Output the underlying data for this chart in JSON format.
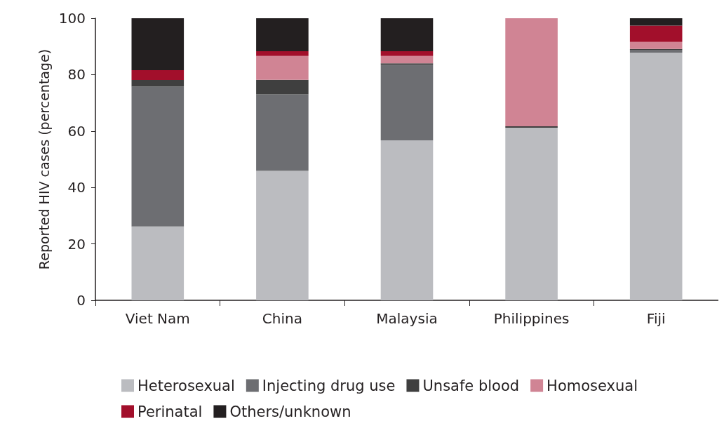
{
  "chart_data": {
    "type": "bar",
    "stacked": true,
    "ylabel": "Reported HIV cases (percentage)",
    "categories": [
      "Viet Nam",
      "China",
      "Malaysia",
      "Philippines",
      "Fiji"
    ],
    "series": [
      {
        "name": "Heterosexual",
        "color": "#bbbcc0",
        "values": [
          26.2,
          45.9,
          56.7,
          61.2,
          87.8
        ]
      },
      {
        "name": "Injecting drug use",
        "color": "#6d6e72",
        "values": [
          49.6,
          27.1,
          26.8,
          0,
          1.0
        ]
      },
      {
        "name": "Unsafe blood",
        "color": "#3f3f3f",
        "values": [
          2.3,
          5.2,
          0.5,
          0.5,
          0.3
        ]
      },
      {
        "name": "Homosexual",
        "color": "#d08494",
        "values": [
          0,
          8.4,
          2.6,
          38.3,
          2.5
        ]
      },
      {
        "name": "Perinatal",
        "color": "#a20f2b",
        "values": [
          3.5,
          1.7,
          1.7,
          0,
          5.8
        ]
      },
      {
        "name": "Others/unknown",
        "color": "#231f20",
        "values": [
          18.4,
          11.7,
          11.7,
          0,
          2.6
        ]
      }
    ],
    "ylim": [
      0,
      100
    ],
    "yticks": [
      0,
      20,
      40,
      60,
      80,
      100
    ],
    "grid": false,
    "legend": "bottom"
  }
}
